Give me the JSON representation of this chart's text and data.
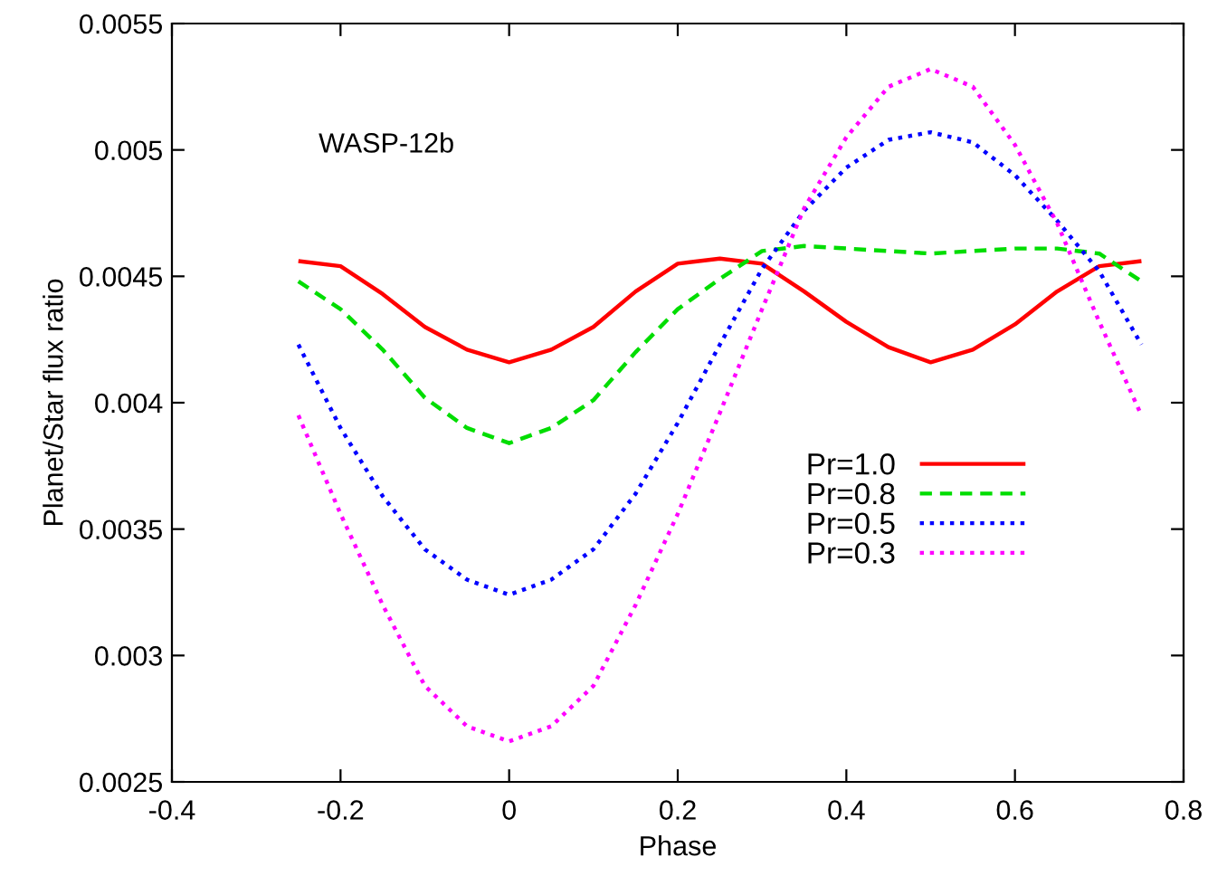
{
  "chart_data": {
    "type": "line",
    "xlabel": "Phase",
    "ylabel": "Planet/Star flux ratio",
    "annotations": [
      "WASP-12b"
    ],
    "x": [
      -0.25,
      -0.2,
      -0.15,
      -0.1,
      -0.05,
      0,
      0.05,
      0.1,
      0.15,
      0.2,
      0.25,
      0.3,
      0.35,
      0.4,
      0.45,
      0.5,
      0.55,
      0.6,
      0.65,
      0.7,
      0.75
    ],
    "series": [
      {
        "name": "Pr=1.0",
        "color": "#ff0000",
        "line_style": "solid",
        "values": [
          0.00456,
          0.00454,
          0.00443,
          0.0043,
          0.00421,
          0.00416,
          0.00421,
          0.0043,
          0.00444,
          0.00455,
          0.00457,
          0.00455,
          0.00444,
          0.00432,
          0.00422,
          0.00416,
          0.00421,
          0.00431,
          0.00444,
          0.00454,
          0.00456
        ]
      },
      {
        "name": "Pr=0.8",
        "color": "#00dd00",
        "line_style": "dashed",
        "values": [
          0.00448,
          0.00437,
          0.00421,
          0.00402,
          0.0039,
          0.00384,
          0.0039,
          0.00401,
          0.0042,
          0.00437,
          0.00449,
          0.0046,
          0.00462,
          0.00461,
          0.0046,
          0.00459,
          0.0046,
          0.00461,
          0.00461,
          0.00459,
          0.00448
        ]
      },
      {
        "name": "Pr=0.5",
        "color": "#0000ff",
        "line_style": "dotted",
        "values": [
          0.00423,
          0.0039,
          0.00363,
          0.00342,
          0.0033,
          0.00324,
          0.0033,
          0.00342,
          0.00364,
          0.00392,
          0.00423,
          0.00453,
          0.00476,
          0.00493,
          0.00504,
          0.00507,
          0.00503,
          0.0049,
          0.00472,
          0.00452,
          0.00423
        ]
      },
      {
        "name": "Pr=0.3",
        "color": "#ff00ff",
        "line_style": "dotted",
        "values": [
          0.00395,
          0.00356,
          0.0032,
          0.00288,
          0.00272,
          0.00266,
          0.00272,
          0.00288,
          0.0032,
          0.00356,
          0.00396,
          0.00437,
          0.00477,
          0.00505,
          0.00525,
          0.00532,
          0.00525,
          0.00502,
          0.00471,
          0.00432,
          0.00395
        ]
      }
    ],
    "xlim": [
      -0.4,
      0.8
    ],
    "xticks": [
      -0.4,
      -0.2,
      0,
      0.2,
      0.4,
      0.6,
      0.8
    ],
    "ylim": [
      0.0025,
      0.0055
    ],
    "yticks": [
      0.0025,
      0.003,
      0.0035,
      0.004,
      0.0045,
      0.005,
      0.0055
    ],
    "grid": false,
    "legend": "right",
    "marker": "none"
  }
}
